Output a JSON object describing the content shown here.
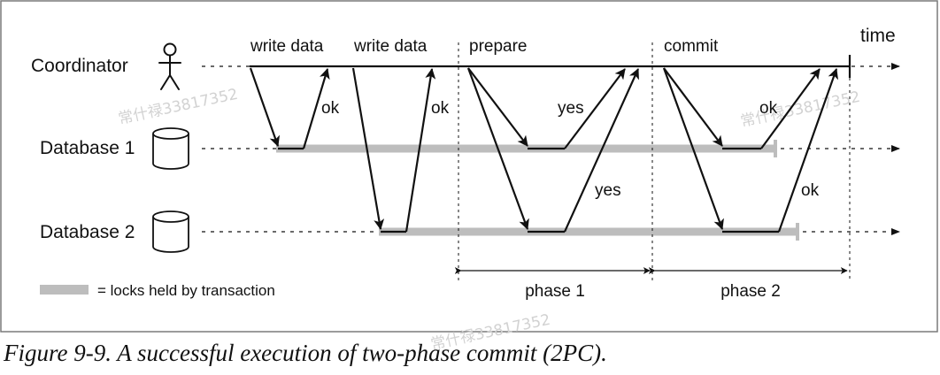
{
  "participants": {
    "coordinator": "Coordinator",
    "database1": "Database 1",
    "database2": "Database 2"
  },
  "time_label": "time",
  "messages": {
    "write_data_1": "write data",
    "write_data_2": "write data",
    "prepare": "prepare",
    "commit": "commit",
    "ok_db1_write": "ok",
    "ok_db2_write": "ok",
    "yes_db1": "yes",
    "yes_db2": "yes",
    "ok_db1_commit": "ok",
    "ok_db2_commit": "ok"
  },
  "phases": {
    "phase1": "phase 1",
    "phase2": "phase 2"
  },
  "legend": {
    "locks_label": "= locks held by transaction"
  },
  "watermarks": [
    "常什禄33817352",
    "常什禄33817352",
    "常什禄33817352"
  ],
  "caption": "Figure 9-9. A successful execution of two-phase commit (2PC).",
  "colors": {
    "ink": "#111111",
    "lock_bar": "#bdbdbd",
    "frame": "#7a7a7a",
    "watermark": "#d2d2d2"
  }
}
